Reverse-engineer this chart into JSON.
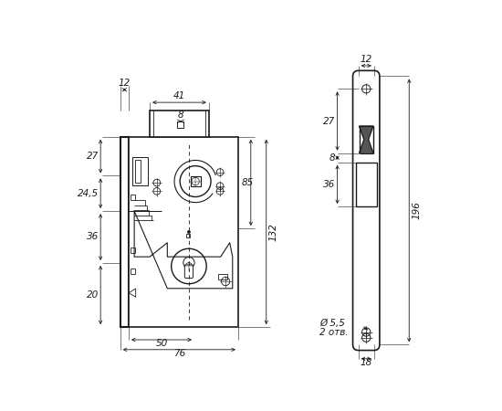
{
  "bg_color": "#ffffff",
  "line_color": "#1a1a1a",
  "fig_width": 5.5,
  "fig_height": 4.5,
  "dpi": 100,
  "font_size": 7.5
}
